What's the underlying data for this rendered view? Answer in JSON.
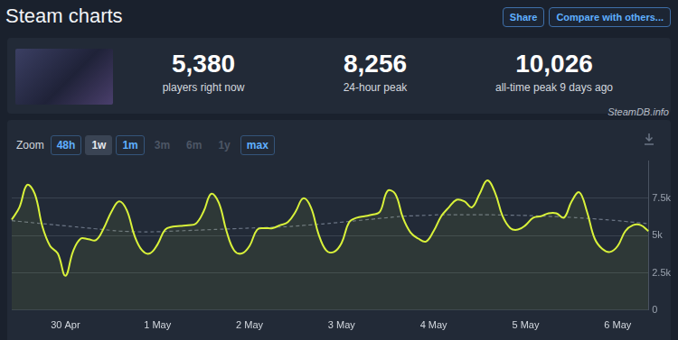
{
  "page": {
    "title": "Steam charts",
    "buttons": [
      "Share",
      "Compare with others..."
    ],
    "stats": [
      {
        "value": "5,380",
        "label": "players right now"
      },
      {
        "value": "8,256",
        "label": "24-hour peak"
      },
      {
        "value": "10,026",
        "label": "all-time peak 9 days ago"
      }
    ],
    "source": "SteamDB.info",
    "zoom": {
      "label": "Zoom",
      "options": [
        "48h",
        "1w",
        "1m",
        "3m",
        "6m",
        "1y",
        "max"
      ],
      "active": "1w",
      "disabled": [
        "3m",
        "6m",
        "1y"
      ]
    }
  },
  "chart_data": {
    "type": "line",
    "categories": [
      null,
      null,
      null,
      null,
      null,
      null,
      null,
      "30 Apr",
      null,
      null,
      null,
      null,
      null,
      null,
      null,
      null,
      null,
      null,
      null,
      "1 May",
      null,
      null,
      null,
      null,
      null,
      null,
      null,
      null,
      null,
      null,
      null,
      "2 May",
      null,
      null,
      null,
      null,
      null,
      null,
      null,
      null,
      null,
      null,
      null,
      "3 May",
      null,
      null,
      null,
      null,
      null,
      null,
      null,
      null,
      null,
      null,
      null,
      "4 May",
      null,
      null,
      null,
      null,
      null,
      null,
      null,
      null,
      null,
      null,
      null,
      "5 May",
      null,
      null,
      null,
      null,
      null,
      null,
      null,
      null,
      null,
      null,
      null,
      "6 May",
      null,
      null,
      null,
      null
    ],
    "series": [
      {
        "color": "#d9f23a",
        "values": [
          6070,
          6900,
          8400,
          7800,
          5600,
          4300,
          3800,
          2300,
          3950,
          4800,
          4750,
          4700,
          5500,
          6600,
          7300,
          6700,
          5000,
          4000,
          3800,
          4400,
          5400,
          5600,
          5650,
          5700,
          5800,
          6600,
          7800,
          7200,
          5300,
          4000,
          3800,
          4300,
          5400,
          5500,
          5500,
          5700,
          5900,
          6600,
          7500,
          6900,
          5100,
          4000,
          3900,
          4500,
          5900,
          6200,
          6300,
          6400,
          6600,
          8000,
          7800,
          6200,
          5200,
          4800,
          4600,
          5300,
          6300,
          6900,
          7400,
          7300,
          6900,
          7800,
          8700,
          7900,
          6300,
          5500,
          5400,
          5700,
          6200,
          6300,
          6500,
          6500,
          6200,
          7300,
          7900,
          6600,
          4800,
          4100,
          3900,
          4300,
          5300,
          5700,
          5700,
          5300
        ]
      },
      {
        "color": "#6b7585",
        "line_style": "dashed",
        "values": [
          6000,
          5950,
          5900,
          5850,
          5800,
          5750,
          5700,
          5650,
          5600,
          5550,
          5500,
          5450,
          5400,
          5350,
          5300,
          5280,
          5260,
          5250,
          5250,
          5260,
          5280,
          5300,
          5320,
          5340,
          5360,
          5380,
          5400,
          5420,
          5440,
          5460,
          5480,
          5500,
          5520,
          5540,
          5560,
          5580,
          5600,
          5640,
          5680,
          5720,
          5760,
          5800,
          5850,
          5900,
          5950,
          6000,
          6050,
          6100,
          6150,
          6200,
          6250,
          6300,
          6320,
          6340,
          6360,
          6380,
          6400,
          6400,
          6400,
          6400,
          6400,
          6400,
          6400,
          6390,
          6380,
          6370,
          6360,
          6350,
          6330,
          6310,
          6290,
          6270,
          6250,
          6220,
          6190,
          6160,
          6120,
          6080,
          6040,
          6000,
          5950,
          5900,
          5850,
          5800
        ]
      }
    ],
    "ylim": [
      0,
      10000
    ],
    "yticks": [
      0,
      {
        "value": 2500,
        "label": "2.5k"
      },
      {
        "value": 5000,
        "label": "5k"
      },
      {
        "value": 7500,
        "label": "7.5k"
      }
    ],
    "grid": true,
    "marker": "none"
  }
}
